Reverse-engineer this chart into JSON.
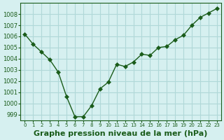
{
  "x": [
    0,
    1,
    2,
    3,
    4,
    5,
    6,
    7,
    8,
    9,
    10,
    11,
    12,
    13,
    14,
    15,
    16,
    17,
    18,
    19,
    20,
    21,
    22,
    23
  ],
  "y": [
    1006.2,
    1005.3,
    1004.6,
    1003.9,
    1002.8,
    1000.6,
    998.8,
    998.8,
    999.8,
    1001.3,
    1001.9,
    1003.5,
    1003.3,
    1003.7,
    1004.4,
    1004.3,
    1005.0,
    1005.1,
    1005.7,
    1006.1,
    1007.0,
    1007.7,
    1008.1,
    1008.5
  ],
  "line_color": "#1a5c1a",
  "marker": "D",
  "marker_size": 3,
  "background_color": "#d6f0f0",
  "grid_color": "#b0d8d8",
  "title": "Graphe pression niveau de la mer (hPa)",
  "ylim": [
    998.5,
    1009.0
  ],
  "xlim": [
    -0.5,
    23.5
  ],
  "yticks": [
    999,
    1000,
    1001,
    1002,
    1003,
    1004,
    1005,
    1006,
    1007,
    1008
  ],
  "xtick_labels": [
    "0",
    "1",
    "2",
    "3",
    "4",
    "5",
    "6",
    "7",
    "8",
    "9",
    "10",
    "11",
    "12",
    "13",
    "14",
    "15",
    "16",
    "17",
    "18",
    "19",
    "20",
    "21",
    "22",
    "23"
  ],
  "title_fontsize": 8,
  "tick_fontsize": 6,
  "title_color": "#1a5c1a",
  "tick_color": "#1a5c1a",
  "axis_color": "#1a5c1a"
}
